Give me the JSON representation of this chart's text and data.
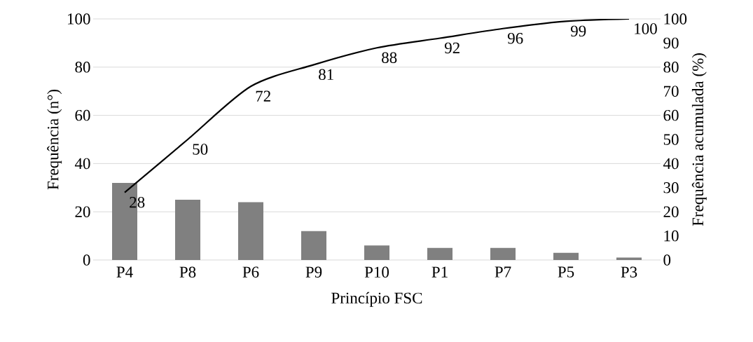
{
  "chart_data": {
    "type": "bar",
    "xlabel": "Princípio FSC",
    "ylabel": "Frequência (n°)",
    "y2label": "Frequência acumulada (%)",
    "categories": [
      "P4",
      "P8",
      "P6",
      "P9",
      "P10",
      "P1",
      "P7",
      "P5",
      "P3"
    ],
    "series": [
      {
        "color": "#808080",
        "values": [
          32,
          25,
          24,
          12,
          6,
          5,
          5,
          3,
          1
        ]
      },
      {
        "type": "line",
        "axis": "y2",
        "color": "#000000",
        "values": [
          28,
          50,
          72,
          81,
          88,
          92,
          96,
          99,
          100
        ],
        "data_labels": true
      }
    ],
    "ylim": [
      0,
      100
    ],
    "yticks": [
      0,
      20,
      40,
      60,
      80,
      100
    ],
    "y2lim": [
      0,
      100
    ],
    "y2ticks": [
      0,
      10,
      20,
      30,
      40,
      50,
      60,
      70,
      80,
      90,
      100
    ],
    "grid": "y",
    "legend": false
  }
}
